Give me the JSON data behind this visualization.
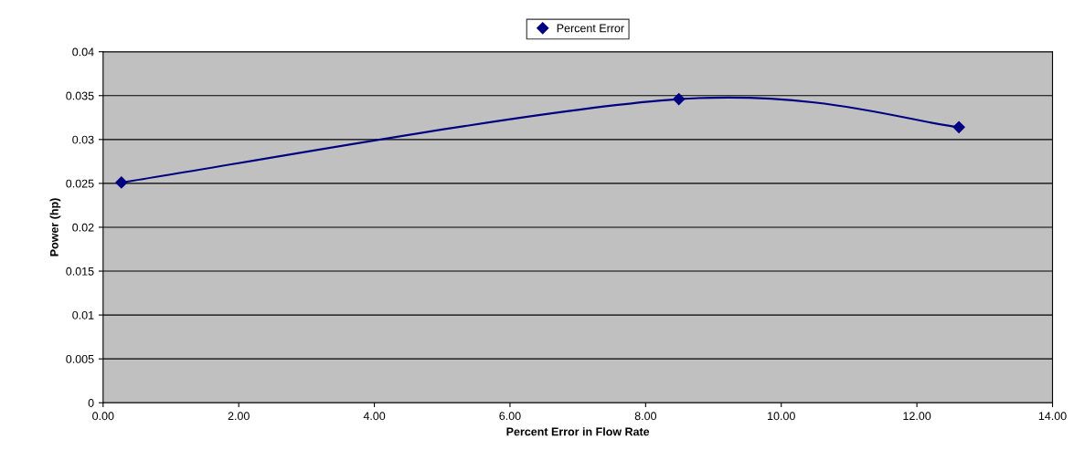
{
  "chart_data": {
    "type": "line",
    "xlabel": "Percent Error in Flow Rate",
    "ylabel": "Power (hp)",
    "x": [
      0.27,
      8.49,
      12.62
    ],
    "series": [
      {
        "name": "Percent Error",
        "color": "#000080",
        "values": [
          0.0251,
          0.0346,
          0.0314
        ]
      }
    ],
    "xlim": [
      0,
      14
    ],
    "ylim": [
      0,
      0.04
    ],
    "xticks": [
      {
        "value": 0,
        "label": "0.00"
      },
      {
        "value": 2,
        "label": "2.00"
      },
      {
        "value": 4,
        "label": "4.00"
      },
      {
        "value": 6,
        "label": "6.00"
      },
      {
        "value": 8,
        "label": "8.00"
      },
      {
        "value": 10,
        "label": "10.00"
      },
      {
        "value": 12,
        "label": "12.00"
      },
      {
        "value": 14,
        "label": "14.00"
      }
    ],
    "yticks": [
      0,
      0.005,
      0.01,
      0.015,
      0.02,
      0.025,
      0.03,
      0.035,
      0.04
    ],
    "grid": "y",
    "legend": "top",
    "marker": "diamond",
    "line_style": "solid"
  }
}
